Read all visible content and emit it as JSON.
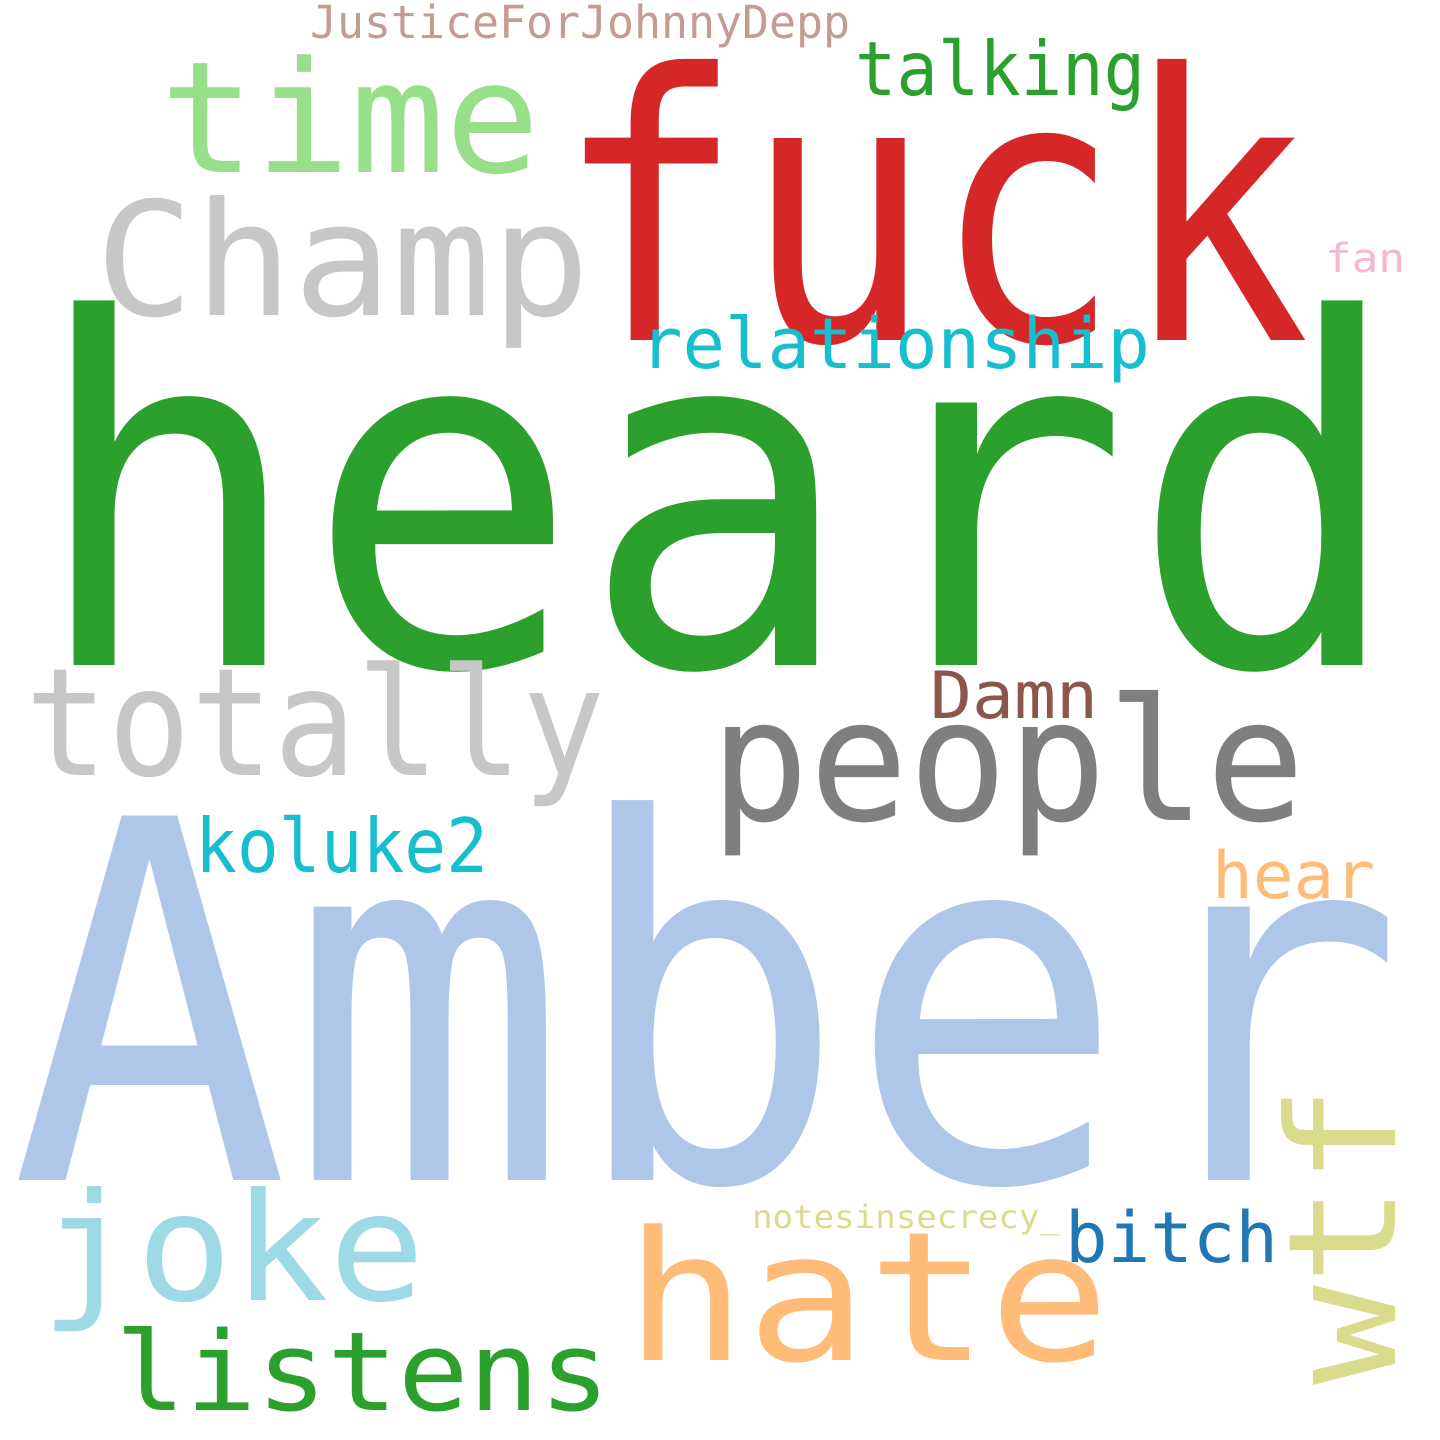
{
  "words": [
    {
      "text": "heard",
      "color": "#2ca02c"
    },
    {
      "text": "Amber",
      "color": "#aec7e8"
    },
    {
      "text": "fuck",
      "color": "#d62728"
    },
    {
      "text": "time",
      "color": "#98df8a"
    },
    {
      "text": "Champ",
      "color": "#c7c7c7"
    },
    {
      "text": "talking",
      "color": "#2ca02c"
    },
    {
      "text": "JusticeForJohnnyDepp",
      "color": "#c49c94"
    },
    {
      "text": "fan",
      "color": "#f7b6d2"
    },
    {
      "text": "relationship",
      "color": "#17becf"
    },
    {
      "text": "Damn",
      "color": "#8c564b"
    },
    {
      "text": "totally",
      "color": "#c7c7c7"
    },
    {
      "text": "people",
      "color": "#7f7f7f"
    },
    {
      "text": "koluke2",
      "color": "#17becf"
    },
    {
      "text": "hear",
      "color": "#ffbb78"
    },
    {
      "text": "wtf",
      "color": "#dbdb8d"
    },
    {
      "text": "notesinsecrecy_",
      "color": "#dbdb8d"
    },
    {
      "text": "bitch",
      "color": "#1f77b4"
    },
    {
      "text": "joke",
      "color": "#9edae5"
    },
    {
      "text": "hate",
      "color": "#ffbb78"
    },
    {
      "text": "listens",
      "color": "#2ca02c"
    }
  ]
}
